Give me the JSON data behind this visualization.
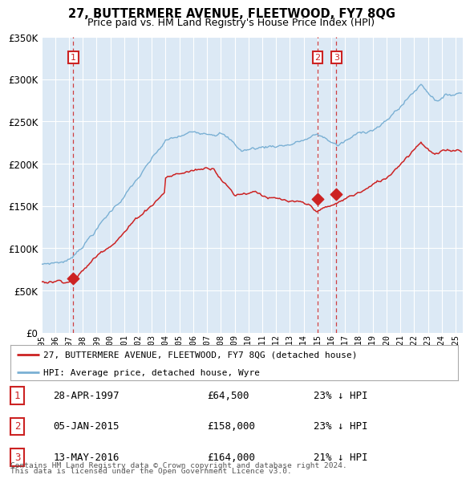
{
  "title": "27, BUTTERMERE AVENUE, FLEETWOOD, FY7 8QG",
  "subtitle": "Price paid vs. HM Land Registry's House Price Index (HPI)",
  "legend_line1": "27, BUTTERMERE AVENUE, FLEETWOOD, FY7 8QG (detached house)",
  "legend_line2": "HPI: Average price, detached house, Wyre",
  "sales": [
    {
      "label": "1",
      "date": "28-APR-1997",
      "price": 64500,
      "year": 1997.32,
      "pct": "23%",
      "dir": "↓"
    },
    {
      "label": "2",
      "date": "05-JAN-2015",
      "price": 158000,
      "year": 2015.01,
      "pct": "23%",
      "dir": "↓"
    },
    {
      "label": "3",
      "date": "13-MAY-2016",
      "price": 164000,
      "year": 2016.37,
      "pct": "21%",
      "dir": "↓"
    }
  ],
  "footnote1": "Contains HM Land Registry data © Crown copyright and database right 2024.",
  "footnote2": "This data is licensed under the Open Government Licence v3.0.",
  "ylim": [
    0,
    350000
  ],
  "xlim": [
    1995.0,
    2025.5
  ],
  "hpi_color": "#7ab0d4",
  "sale_color": "#cc2222",
  "vline_color": "#cc2222",
  "background_color": "#dce9f5",
  "plot_bg": "#ffffff",
  "grid_color": "#ffffff"
}
